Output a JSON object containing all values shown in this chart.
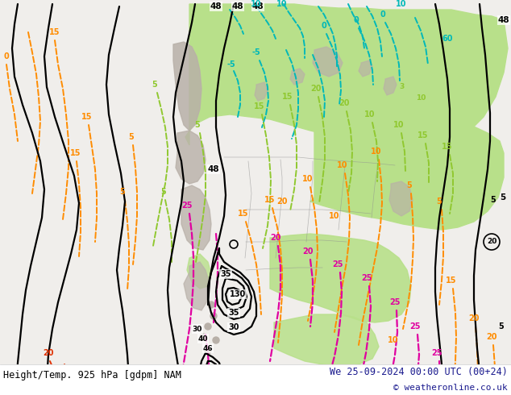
{
  "title_left": "Height/Temp. 925 hPa [gdpm] NAM",
  "title_right": "We 25-09-2024 00:00 UTC (00+24)",
  "copyright": "© weatheronline.co.uk",
  "bg_color": "#f0eeeb",
  "title_color": "#1a1a8e",
  "copyright_color": "#1a1a8e",
  "figsize": [
    6.34,
    4.9
  ],
  "dpi": 100,
  "light_green": "#b8e08a",
  "gray_terrain": "#b8b0a8",
  "orange": "#ff8c00",
  "cyan": "#00b8b8",
  "magenta": "#e000a0",
  "ygreen": "#90c830",
  "red": "#e03000",
  "black": "#000000"
}
